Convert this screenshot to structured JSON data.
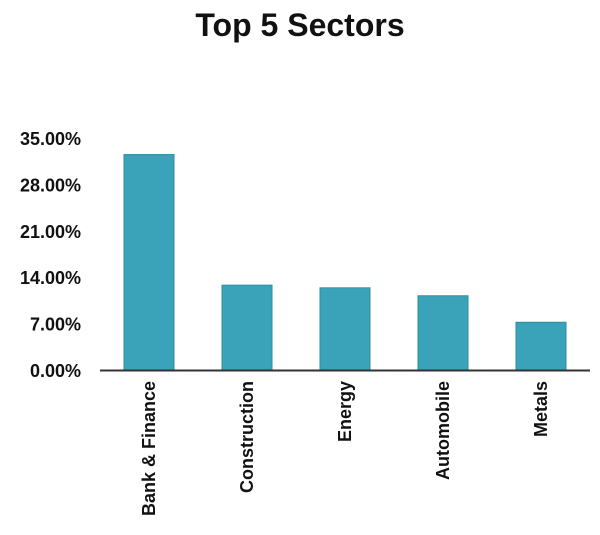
{
  "chart_data": {
    "type": "bar",
    "title": "Top 5 Sectors",
    "categories": [
      "Bank & Finance",
      "Construction",
      "Energy",
      "Automobile",
      "Metals"
    ],
    "values": [
      32.5,
      12.8,
      12.4,
      11.2,
      7.2
    ],
    "ylim": [
      0,
      35
    ],
    "yticks": [
      0,
      7,
      14,
      21,
      28,
      35
    ],
    "ytick_labels": [
      "0.00%",
      "7.00%",
      "14.00%",
      "21.00%",
      "28.00%",
      "35.00%"
    ],
    "xlabel": "",
    "ylabel": "",
    "grid": false,
    "legend": "none",
    "bar_color": "#3aa3b9",
    "bar_edge_color": "#2e8da1"
  }
}
